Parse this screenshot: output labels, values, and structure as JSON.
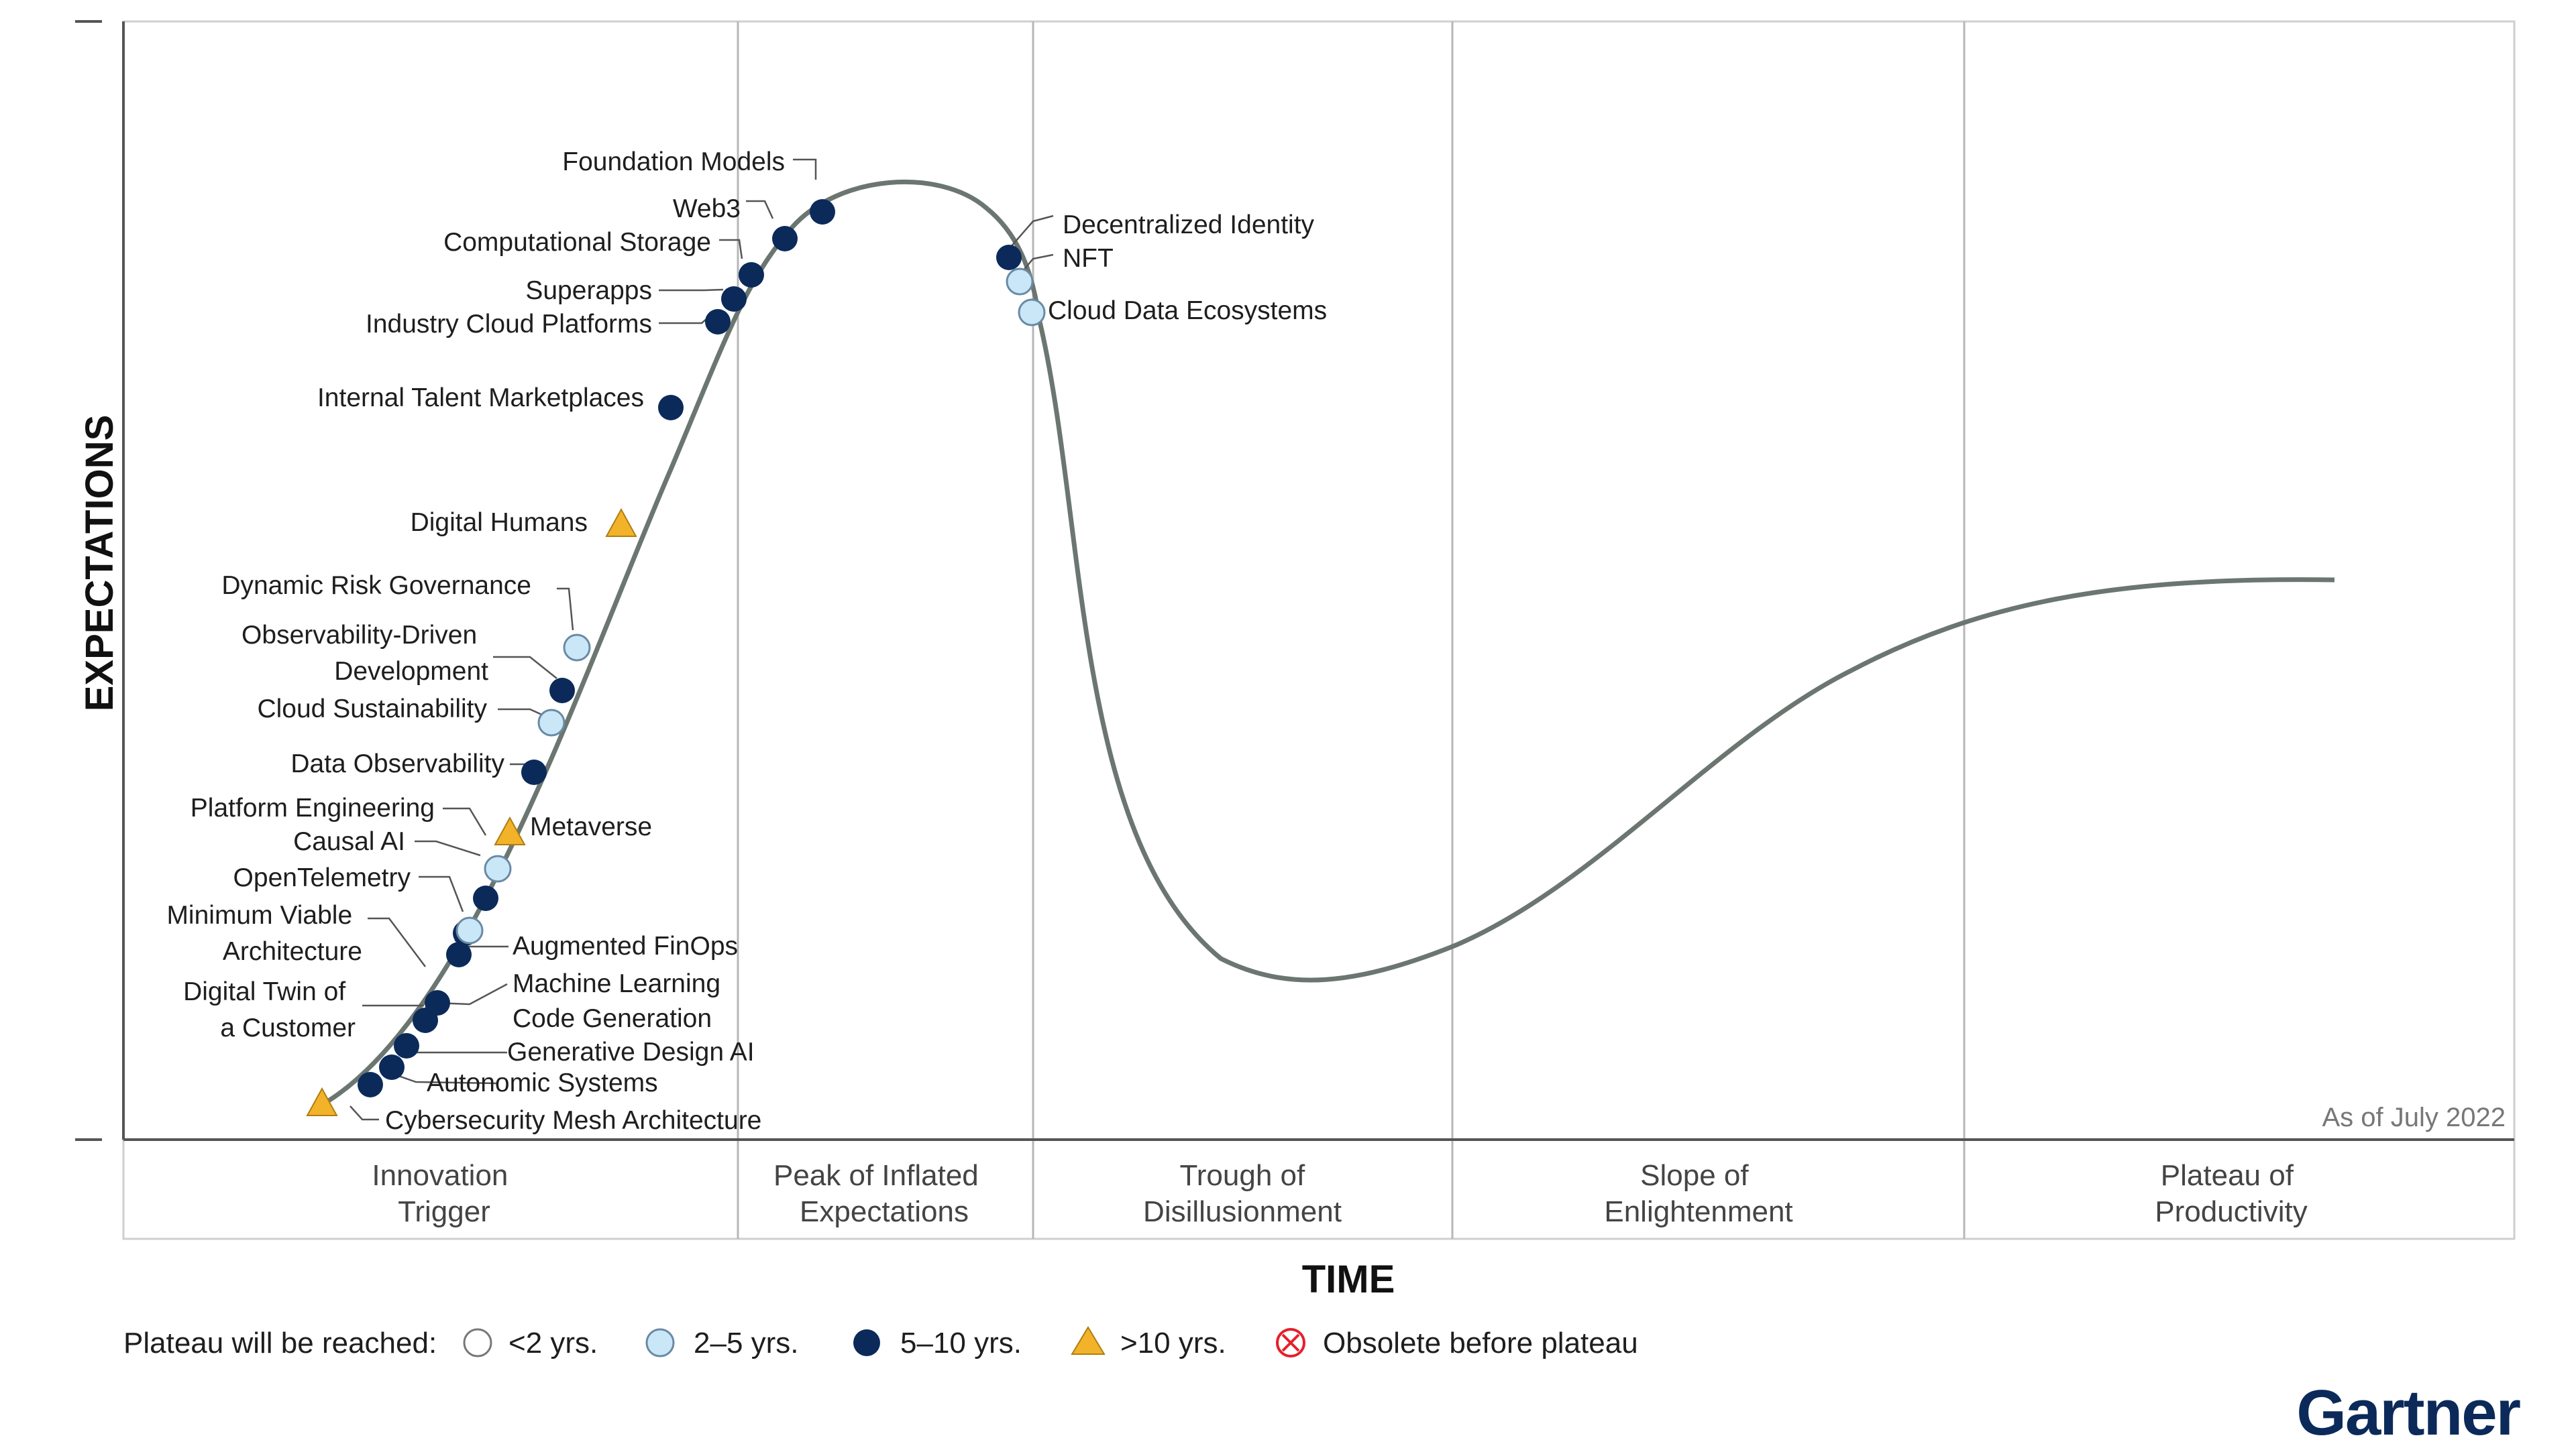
{
  "chart_data": {
    "type": "hype-cycle",
    "xlabel": "TIME",
    "ylabel": "EXPECTATIONS",
    "as_of": "As of July 2022",
    "brand": "Gartner",
    "phases": [
      {
        "line1": "Innovation",
        "line2": "Trigger"
      },
      {
        "line1": "Peak of Inflated",
        "line2": "Expectations"
      },
      {
        "line1": "Trough of",
        "line2": "Disillusionment"
      },
      {
        "line1": "Slope of",
        "line2": "Enlightenment"
      },
      {
        "line1": "Plateau of",
        "line2": "Productivity"
      }
    ],
    "legend": {
      "title": "Plateau will be reached:",
      "items": [
        {
          "label": "<2 yrs.",
          "marker": "circle-white"
        },
        {
          "label": "2–5 yrs.",
          "marker": "circle-light"
        },
        {
          "label": "5–10 yrs.",
          "marker": "circle-dark"
        },
        {
          "label": ">10 yrs.",
          "marker": "triangle"
        },
        {
          "label": "Obsolete before plateau",
          "marker": "x-circle"
        }
      ]
    },
    "colors": {
      "curve": "#6c7670",
      "dark": "#0b2a5a",
      "light": "#c9e7f6",
      "light_stroke": "#6a8aa5",
      "triangle": "#f2b32a",
      "obsolete": "#e4202b",
      "gridline": "#b7b7b7",
      "brand": "#0b2a5a"
    },
    "technologies": [
      {
        "name": "Cybersecurity Mesh Architecture",
        "marker": "triangle"
      },
      {
        "name": "Autonomic Systems",
        "marker": "circle-dark"
      },
      {
        "name": "Generative Design AI",
        "marker": "circle-dark"
      },
      {
        "name": "Code Generation",
        "marker": "circle-dark"
      },
      {
        "name": "Digital Twin of a Customer",
        "marker": "circle-dark"
      },
      {
        "name": "Machine Learning",
        "marker": "circle-dark"
      },
      {
        "name": "Minimum Viable Architecture",
        "marker": "circle-dark"
      },
      {
        "name": "Augmented FinOps",
        "marker": "circle-dark"
      },
      {
        "name": "OpenTelemetry",
        "marker": "circle-light"
      },
      {
        "name": "Causal AI",
        "marker": "circle-dark"
      },
      {
        "name": "Platform Engineering",
        "marker": "circle-light"
      },
      {
        "name": "Metaverse",
        "marker": "triangle"
      },
      {
        "name": "Data Observability",
        "marker": "circle-dark"
      },
      {
        "name": "Cloud Sustainability",
        "marker": "circle-light"
      },
      {
        "name": "Observability-Driven Development",
        "marker": "circle-dark"
      },
      {
        "name": "Dynamic Risk Governance",
        "marker": "circle-light"
      },
      {
        "name": "Digital Humans",
        "marker": "triangle"
      },
      {
        "name": "Internal Talent Marketplaces",
        "marker": "circle-dark"
      },
      {
        "name": "Industry Cloud Platforms",
        "marker": "circle-dark"
      },
      {
        "name": "Superapps",
        "marker": "circle-dark"
      },
      {
        "name": "Computational Storage",
        "marker": "circle-dark"
      },
      {
        "name": "Web3",
        "marker": "circle-dark"
      },
      {
        "name": "Foundation Models",
        "marker": "circle-dark"
      },
      {
        "name": "Decentralized Identity",
        "marker": "circle-dark"
      },
      {
        "name": "NFT",
        "marker": "circle-light"
      },
      {
        "name": "Cloud Data Ecosystems",
        "marker": "circle-light"
      }
    ]
  }
}
